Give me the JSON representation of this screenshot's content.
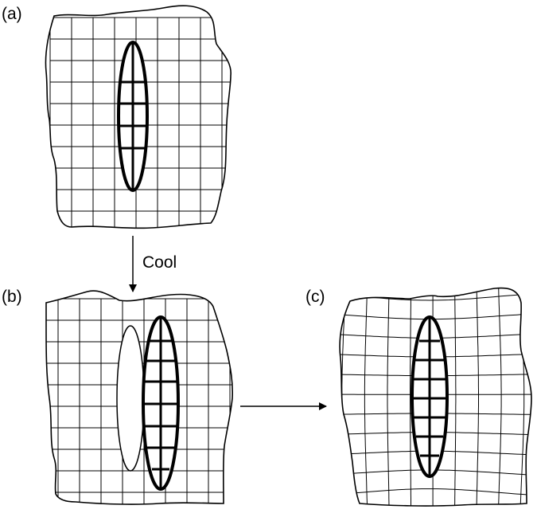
{
  "diagram": {
    "panels": [
      {
        "id": "a",
        "label": "(a)"
      },
      {
        "id": "b",
        "label": "(b)"
      },
      {
        "id": "c",
        "label": "(c)"
      }
    ],
    "cool_arrow": {
      "label": "Cool"
    }
  }
}
